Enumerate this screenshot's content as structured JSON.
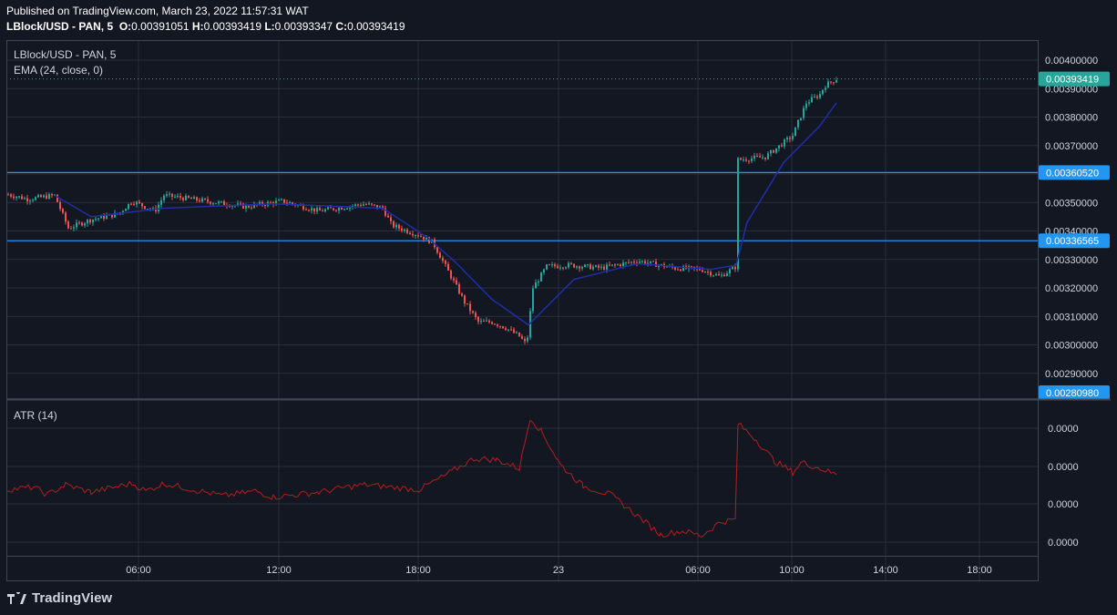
{
  "header": {
    "published": "Published on TradingView.com, March 23, 2022 11:57:31 WAT",
    "symbol": "LBlock/USD - PAN, 5",
    "ohlc": {
      "o_label": "O:",
      "o": "0.00391051",
      "h_label": "H:",
      "h": "0.00393419",
      "l_label": "L:",
      "l": "0.00393347",
      "c_label": "C:",
      "c": "0.00393419"
    }
  },
  "branding": {
    "logo_text": "TradingView",
    "logo_icon": "tradingview-logo"
  },
  "colors": {
    "background": "#131722",
    "grid": "#2a2e39",
    "border": "#434651",
    "up": "#26a69a",
    "down": "#ef5350",
    "ema": "#1f2ea8",
    "atr": "#b71c1c",
    "level": "#2196f3",
    "last_price": "#26a69a"
  },
  "chart_data": [
    {
      "type": "candlestick",
      "title": "LBlock/USD - PAN, 5",
      "indicator_label": "EMA (24, close, 0)",
      "y_ticks": [
        "0.00400000",
        "0.00390000",
        "0.00380000",
        "0.00370000",
        "0.00350000",
        "0.00340000",
        "0.00330000",
        "0.00320000",
        "0.00310000",
        "0.00300000",
        "0.00290000"
      ],
      "ylim": [
        0.0028098,
        0.00404
      ],
      "x_ticks": [
        "06:00",
        "12:00",
        "18:00",
        "23",
        "06:00",
        "10:00",
        "14:00",
        "18:00"
      ],
      "last_price": {
        "label": "0.00393419",
        "value": 0.00393419
      },
      "levels": [
        {
          "label": "0.00360520",
          "value": 0.0036052
        },
        {
          "label": "0.00336565",
          "value": 0.00336565
        },
        {
          "label": "0.00280980",
          "value": 0.0028098
        }
      ],
      "price_path": [
        [
          0,
          0.003535
        ],
        [
          30,
          0.003512
        ],
        [
          60,
          0.003525
        ],
        [
          75,
          0.00341
        ],
        [
          100,
          0.00344
        ],
        [
          130,
          0.00346
        ],
        [
          145,
          0.003505
        ],
        [
          170,
          0.00347
        ],
        [
          180,
          0.003525
        ],
        [
          215,
          0.00351
        ],
        [
          270,
          0.003485
        ],
        [
          310,
          0.003505
        ],
        [
          350,
          0.00347
        ],
        [
          400,
          0.003495
        ],
        [
          420,
          0.00348
        ],
        [
          430,
          0.00342
        ],
        [
          460,
          0.003385
        ],
        [
          475,
          0.00336
        ],
        [
          490,
          0.00327
        ],
        [
          510,
          0.00315
        ],
        [
          525,
          0.00308
        ],
        [
          540,
          0.00308
        ],
        [
          555,
          0.00306
        ],
        [
          570,
          0.00303
        ],
        [
          578,
          0.003
        ],
        [
          585,
          0.0032
        ],
        [
          600,
          0.003275
        ],
        [
          625,
          0.00328
        ],
        [
          660,
          0.00327
        ],
        [
          700,
          0.003295
        ],
        [
          740,
          0.00327
        ],
        [
          770,
          0.003265
        ],
        [
          790,
          0.00324
        ],
        [
          808,
          0.003275
        ],
        [
          810,
          0.00365
        ],
        [
          840,
          0.00366
        ],
        [
          860,
          0.00371
        ],
        [
          870,
          0.003735
        ],
        [
          885,
          0.00385
        ],
        [
          900,
          0.00388
        ],
        [
          905,
          0.00391
        ],
        [
          918,
          0.003934
        ]
      ],
      "ema_path": [
        [
          60,
          0.003525
        ],
        [
          100,
          0.00345
        ],
        [
          180,
          0.00348
        ],
        [
          300,
          0.003495
        ],
        [
          420,
          0.00348
        ],
        [
          470,
          0.003375
        ],
        [
          500,
          0.00329
        ],
        [
          540,
          0.00316
        ],
        [
          580,
          0.00307
        ],
        [
          630,
          0.00323
        ],
        [
          700,
          0.003285
        ],
        [
          780,
          0.003265
        ],
        [
          808,
          0.00328
        ],
        [
          820,
          0.00343
        ],
        [
          860,
          0.00364
        ],
        [
          900,
          0.00377
        ],
        [
          918,
          0.00385
        ]
      ]
    },
    {
      "type": "line",
      "title": "ATR (14)",
      "series": [
        {
          "name": "ATR (14)",
          "values_path": [
            [
              7,
              0.42
            ],
            [
              37,
              0.44
            ],
            [
              52,
              0.38
            ],
            [
              72,
              0.46
            ],
            [
              100,
              0.4
            ],
            [
              145,
              0.47
            ],
            [
              160,
              0.41
            ],
            [
              180,
              0.47
            ],
            [
              245,
              0.37
            ],
            [
              280,
              0.41
            ],
            [
              300,
              0.36
            ],
            [
              350,
              0.4
            ],
            [
              380,
              0.44
            ],
            [
              400,
              0.46
            ],
            [
              430,
              0.44
            ],
            [
              460,
              0.42
            ],
            [
              490,
              0.54
            ],
            [
              520,
              0.67
            ],
            [
              545,
              0.66
            ],
            [
              570,
              0.59
            ],
            [
              582,
              1.0
            ],
            [
              595,
              0.88
            ],
            [
              615,
              0.62
            ],
            [
              640,
              0.45
            ],
            [
              670,
              0.38
            ],
            [
              700,
              0.21
            ],
            [
              725,
              0.06
            ],
            [
              750,
              0.09
            ],
            [
              770,
              0.05
            ],
            [
              790,
              0.16
            ],
            [
              807,
              0.18
            ],
            [
              810,
              0.95
            ],
            [
              830,
              0.82
            ],
            [
              850,
              0.65
            ],
            [
              870,
              0.56
            ],
            [
              880,
              0.64
            ],
            [
              900,
              0.59
            ],
            [
              918,
              0.54
            ]
          ]
        }
      ],
      "y_ticks": [
        "0.0000",
        "0.0000",
        "0.0000",
        "0.0000"
      ]
    }
  ]
}
